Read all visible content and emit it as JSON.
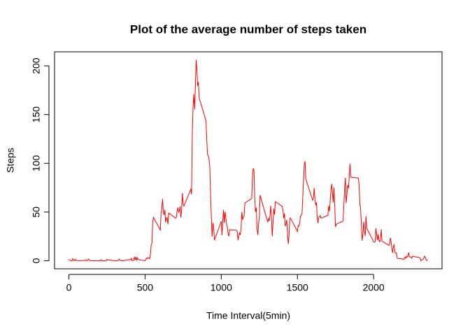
{
  "chart_data": {
    "type": "line",
    "title": "Plot of the average number of steps taken",
    "x_label": "Time Interval(5min)",
    "y_label": "Steps",
    "x": [
      0,
      5,
      10,
      15,
      20,
      25,
      30,
      35,
      40,
      45,
      50,
      55,
      100,
      105,
      110,
      115,
      120,
      125,
      130,
      135,
      140,
      145,
      150,
      155,
      200,
      205,
      210,
      215,
      220,
      225,
      230,
      235,
      240,
      245,
      250,
      255,
      300,
      305,
      310,
      315,
      320,
      325,
      330,
      335,
      340,
      345,
      350,
      355,
      400,
      405,
      410,
      415,
      420,
      425,
      430,
      435,
      440,
      445,
      450,
      455,
      500,
      505,
      510,
      515,
      520,
      525,
      530,
      535,
      540,
      545,
      550,
      555,
      600,
      605,
      610,
      615,
      620,
      625,
      630,
      635,
      640,
      645,
      650,
      655,
      700,
      705,
      710,
      715,
      720,
      725,
      730,
      735,
      740,
      745,
      750,
      755,
      800,
      805,
      810,
      815,
      820,
      825,
      830,
      835,
      840,
      845,
      850,
      855,
      900,
      905,
      910,
      915,
      920,
      925,
      930,
      935,
      940,
      945,
      950,
      955,
      1000,
      1005,
      1010,
      1015,
      1020,
      1025,
      1030,
      1035,
      1040,
      1045,
      1050,
      1055,
      1100,
      1105,
      1110,
      1115,
      1120,
      1125,
      1130,
      1135,
      1140,
      1145,
      1150,
      1155,
      1200,
      1205,
      1210,
      1215,
      1220,
      1225,
      1230,
      1235,
      1240,
      1245,
      1250,
      1255,
      1300,
      1305,
      1310,
      1315,
      1320,
      1325,
      1330,
      1335,
      1340,
      1345,
      1350,
      1355,
      1400,
      1405,
      1410,
      1415,
      1420,
      1425,
      1430,
      1435,
      1440,
      1445,
      1450,
      1455,
      1500,
      1505,
      1510,
      1515,
      1520,
      1525,
      1530,
      1535,
      1540,
      1545,
      1550,
      1555,
      1600,
      1605,
      1610,
      1615,
      1620,
      1625,
      1630,
      1635,
      1640,
      1645,
      1650,
      1655,
      1700,
      1705,
      1710,
      1715,
      1720,
      1725,
      1730,
      1735,
      1740,
      1745,
      1750,
      1755,
      1800,
      1805,
      1810,
      1815,
      1820,
      1825,
      1830,
      1835,
      1840,
      1845,
      1850,
      1855,
      1900,
      1905,
      1910,
      1915,
      1920,
      1925,
      1930,
      1935,
      1940,
      1945,
      1950,
      1955,
      2000,
      2005,
      2010,
      2015,
      2020,
      2025,
      2030,
      2035,
      2040,
      2045,
      2050,
      2055,
      2100,
      2105,
      2110,
      2115,
      2120,
      2125,
      2130,
      2135,
      2140,
      2145,
      2150,
      2155,
      2200,
      2205,
      2210,
      2215,
      2220,
      2225,
      2230,
      2235,
      2240,
      2245,
      2250,
      2255,
      2300,
      2305,
      2310,
      2315,
      2320,
      2325,
      2330,
      2335,
      2340,
      2345,
      2350,
      2355
    ],
    "series": [
      {
        "name": "Steps",
        "color": "#ff0000",
        "values": [
          1.7,
          0.3,
          0.1,
          0.2,
          0,
          2.1,
          0.5,
          0.9,
          0,
          1.5,
          0.3,
          0.1,
          0.3,
          0.7,
          0.2,
          0.3,
          0,
          1.1,
          1.8,
          0.2,
          0.2,
          0.4,
          0.3,
          0,
          0,
          0,
          1.1,
          0,
          0,
          0.1,
          0,
          0.2,
          0,
          0,
          1.5,
          0.9,
          0,
          0,
          0,
          0,
          0.2,
          0.6,
          1.6,
          0.6,
          0.5,
          0.1,
          0,
          0,
          1.2,
          0.9,
          2.6,
          0,
          0.3,
          0.4,
          4.1,
          0.7,
          3.5,
          0.8,
          3.1,
          1.1,
          0,
          1.6,
          3,
          2.2,
          3.3,
          3,
          2.1,
          6.1,
          16,
          18.3,
          39.5,
          44.5,
          31.5,
          49.3,
          53.8,
          63.5,
          50,
          47.1,
          52.2,
          39.3,
          44,
          44.2,
          37.4,
          49,
          43.8,
          44.4,
          50.5,
          54.5,
          49.9,
          51,
          55.7,
          44.3,
          52.3,
          69.5,
          57.8,
          56.2,
          73.4,
          68.2,
          129.4,
          157.5,
          171.2,
          155.4,
          177.3,
          206.2,
          195.9,
          179.6,
          183.4,
          167,
          143.5,
          124,
          109.1,
          108.1,
          103.7,
          95.9,
          66.2,
          45.2,
          24.8,
          38.8,
          34.98,
          21.1,
          40.6,
          26.1,
          41.4,
          52.2,
          38.9,
          50.3,
          44.3,
          37.4,
          34.7,
          28.3,
          25.1,
          31.9,
          31.4,
          29.7,
          21.3,
          25.5,
          28.4,
          26.5,
          33.4,
          49.98,
          42,
          44.6,
          46,
          59.2,
          63.9,
          87.6,
          94.8,
          92.8,
          63.4,
          50.2,
          54.5,
          32.4,
          26.5,
          37.7,
          45.1,
          67.3,
          42.3,
          39.9,
          43.3,
          40.98,
          46.2,
          56.4,
          42.8,
          25.1,
          40,
          53.5,
          47.3,
          60.8,
          55.8,
          51.96,
          43.6,
          48.7,
          35.5,
          37.5,
          42,
          27.5,
          17.2,
          26,
          43.6,
          43.8,
          30,
          36.1,
          35.5,
          38.8,
          46,
          46.7,
          47.7,
          65.3,
          82.9,
          98.7,
          102.1,
          83.97,
          62.1,
          64.1,
          74.7,
          63.2,
          56.9,
          59.8,
          43.9,
          38.6,
          44.7,
          45.5,
          46.2,
          43.7,
          46.6,
          56.3,
          50.7,
          61.2,
          72.7,
          78.9,
          68.9,
          59.7,
          75.1,
          56.5,
          34.8,
          37.5,
          40.7,
          58,
          74.7,
          85.3,
          59.3,
          67.8,
          77.7,
          74.2,
          85.3,
          99.5,
          86.6,
          85.6,
          84.9,
          77.8,
          58,
          53.4,
          36.3,
          20.7,
          27.4,
          40,
          30.2,
          25.5,
          45.7,
          33.5,
          19.6,
          19,
          19.3,
          33.3,
          26.8,
          21.2,
          27.3,
          21.3,
          19.5,
          21.3,
          32.3,
          20.2,
          15.9,
          17.2,
          23.5,
          19.2,
          12.5,
          8,
          14.7,
          16.3,
          8.7,
          7.8,
          8.1,
          2.6,
          1.5,
          3.7,
          2.5,
          4.7,
          3.6,
          4.3,
          8.5,
          4.5,
          3.7,
          3.8,
          2.6,
          4.6,
          3.3,
          2.8,
          0,
          0.8,
          1,
          1.6,
          2.6,
          4.7,
          3.3,
          0.6,
          0.2,
          1.1
        ]
      }
    ],
    "xlim": [
      -94.2,
      2449.2
    ],
    "ylim": [
      -8.25,
      214.42
    ],
    "xticks": [
      0,
      500,
      1000,
      1500,
      2000
    ],
    "yticks": [
      0,
      50,
      100,
      150,
      200
    ]
  }
}
